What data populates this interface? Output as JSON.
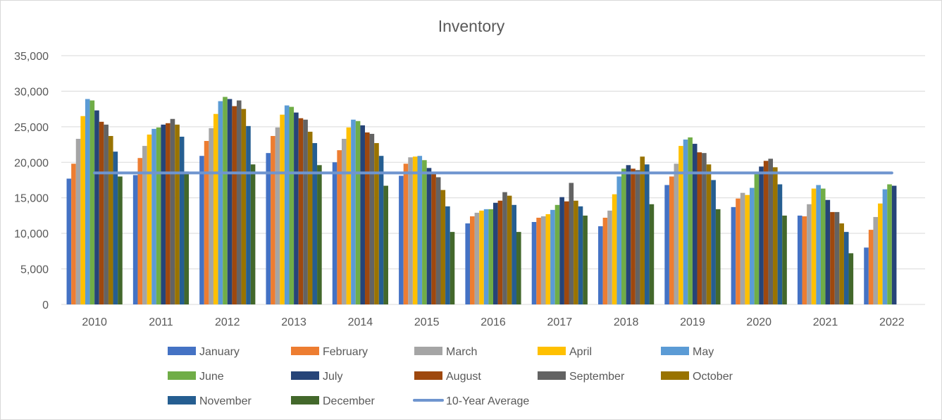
{
  "chart_data": {
    "type": "bar",
    "title": "Inventory",
    "xlabel": "",
    "ylabel": "",
    "ylim": [
      0,
      35000
    ],
    "yticks": [
      0,
      5000,
      10000,
      15000,
      20000,
      25000,
      30000,
      35000
    ],
    "ytick_labels": [
      "0",
      "5,000",
      "10,000",
      "15,000",
      "20,000",
      "25,000",
      "30,000",
      "35,000"
    ],
    "grid": true,
    "legend_position": "bottom",
    "categories": [
      "2010",
      "2011",
      "2012",
      "2013",
      "2014",
      "2015",
      "2016",
      "2017",
      "2018",
      "2019",
      "2020",
      "2021",
      "2022"
    ],
    "series": [
      {
        "name": "January",
        "color": "#4472c4",
        "values": [
          17700,
          18200,
          20900,
          21300,
          20000,
          18100,
          11400,
          11600,
          11000,
          16800,
          13700,
          12500,
          8000
        ]
      },
      {
        "name": "February",
        "color": "#ed7d31",
        "values": [
          19800,
          20600,
          23000,
          23700,
          21700,
          19800,
          12400,
          12200,
          12200,
          18000,
          14900,
          12400,
          10500
        ]
      },
      {
        "name": "March",
        "color": "#a5a5a5",
        "values": [
          23300,
          22300,
          24800,
          24900,
          23300,
          20700,
          12900,
          12400,
          13200,
          19800,
          15700,
          14100,
          12300
        ]
      },
      {
        "name": "April",
        "color": "#ffc000",
        "values": [
          26500,
          23900,
          26800,
          26700,
          24900,
          20800,
          13200,
          12700,
          15500,
          22300,
          15400,
          16300,
          14200
        ]
      },
      {
        "name": "May",
        "color": "#5b9bd5",
        "values": [
          28900,
          24700,
          28600,
          28000,
          26000,
          20900,
          13400,
          13300,
          18000,
          23200,
          16400,
          16800,
          16200
        ]
      },
      {
        "name": "June",
        "color": "#70ad47",
        "values": [
          28700,
          24900,
          29200,
          27800,
          25800,
          20300,
          13400,
          14000,
          19100,
          23500,
          18400,
          16300,
          16900
        ]
      },
      {
        "name": "July",
        "color": "#264478",
        "values": [
          27300,
          25300,
          28900,
          27000,
          25200,
          19200,
          14300,
          15100,
          19600,
          22600,
          19400,
          14700,
          16700
        ]
      },
      {
        "name": "August",
        "color": "#9e480e",
        "values": [
          25700,
          25500,
          27900,
          26200,
          24200,
          18400,
          14600,
          14500,
          19100,
          21400,
          20200,
          13000,
          null
        ]
      },
      {
        "name": "September",
        "color": "#636363",
        "values": [
          25300,
          26100,
          28700,
          26000,
          24000,
          17900,
          15800,
          17100,
          18900,
          21300,
          20500,
          13000,
          null
        ]
      },
      {
        "name": "October",
        "color": "#997300",
        "values": [
          23700,
          25300,
          27500,
          24300,
          22700,
          16100,
          15300,
          14600,
          20800,
          19700,
          19300,
          11400,
          null
        ]
      },
      {
        "name": "November",
        "color": "#255e91",
        "values": [
          21500,
          23600,
          25100,
          22700,
          20900,
          13800,
          14000,
          13800,
          19700,
          17500,
          16900,
          10200,
          null
        ]
      },
      {
        "name": "December",
        "color": "#43682b",
        "values": [
          18000,
          18700,
          19700,
          19600,
          16700,
          10200,
          10200,
          12500,
          14100,
          13400,
          12500,
          7200,
          null
        ]
      }
    ],
    "reference_line": {
      "name": "10-Year Average",
      "color": "#6f95cf",
      "value": 18500,
      "from_category": "2010",
      "to_category": "2022"
    }
  }
}
